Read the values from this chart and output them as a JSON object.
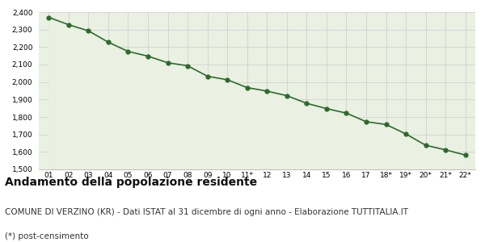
{
  "x_labels": [
    "01",
    "02",
    "03",
    "04",
    "05",
    "06",
    "07",
    "08",
    "09",
    "10",
    "11*",
    "12",
    "13",
    "14",
    "15",
    "16",
    "17",
    "18*",
    "19*",
    "20*",
    "21*",
    "22*"
  ],
  "y_values": [
    2370,
    2328,
    2293,
    2228,
    2175,
    2148,
    2110,
    2093,
    2033,
    2013,
    1968,
    1948,
    1922,
    1878,
    1848,
    1822,
    1773,
    1757,
    1703,
    1638,
    1612,
    1582
  ],
  "line_color": "#2d6a2d",
  "fill_color": "#eaf0e2",
  "marker_color": "#2d6a2d",
  "bg_color": "#ffffff",
  "grid_color": "#cccccc",
  "ylim_min": 1500,
  "ylim_max": 2400,
  "ytick_step": 100,
  "title": "Andamento della popolazione residente",
  "subtitle": "COMUNE DI VERZINO (KR) - Dati ISTAT al 31 dicembre di ogni anno - Elaborazione TUTTITALIA.IT",
  "footnote": "(*) post-censimento",
  "title_fontsize": 10,
  "subtitle_fontsize": 7.5,
  "footnote_fontsize": 7.5
}
